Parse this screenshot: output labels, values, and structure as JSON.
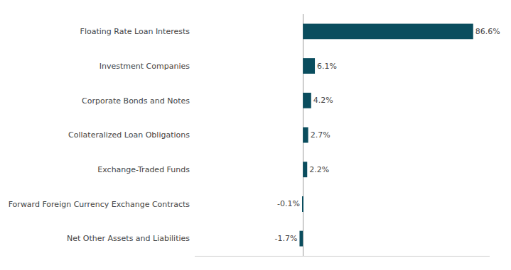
{
  "chart_data": {
    "type": "bar",
    "orientation": "horizontal",
    "categories": [
      "Net Other Assets and Liabilities",
      "Forward Foreign Currency Exchange Contracts",
      "Exchange-Traded Funds",
      "Collateralized Loan Obligations",
      "Corporate Bonds and Notes",
      "Investment Companies",
      "Floating Rate Loan Interests"
    ],
    "values": [
      -1.7,
      -0.1,
      2.2,
      2.7,
      4.2,
      6.1,
      86.6
    ],
    "value_labels": [
      "-1.7%",
      "-0.1%",
      "2.2%",
      "2.7%",
      "4.2%",
      "6.1%",
      "86.6%"
    ],
    "data_labels": true,
    "color": "#0a4d5e",
    "xlim": [
      -55,
      95
    ],
    "grid": false,
    "tick_labels": "y"
  }
}
